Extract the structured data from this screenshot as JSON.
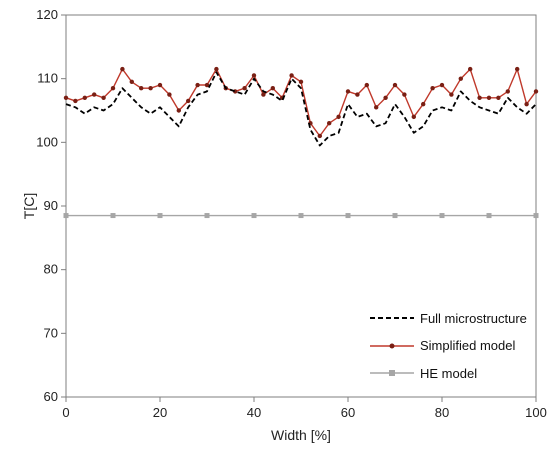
{
  "chart_data": {
    "type": "line",
    "title": "",
    "xlabel": "Width [%]",
    "ylabel": "T[C]",
    "xlim": [
      0,
      100
    ],
    "ylim": [
      60,
      120
    ],
    "xticks": [
      0,
      20,
      40,
      60,
      80,
      100
    ],
    "yticks": [
      60,
      70,
      80,
      90,
      100,
      110,
      120
    ],
    "grid": false,
    "legend_position": "bottom-right",
    "series": [
      {
        "name": "Full microstructure",
        "color": "#000000",
        "style": "dashed",
        "marker": "none",
        "x": [
          0,
          2,
          4,
          6,
          8,
          10,
          12,
          14,
          16,
          18,
          20,
          22,
          24,
          26,
          28,
          30,
          32,
          34,
          36,
          38,
          40,
          42,
          44,
          46,
          48,
          50,
          52,
          54,
          56,
          58,
          60,
          62,
          64,
          66,
          68,
          70,
          72,
          74,
          76,
          78,
          80,
          82,
          84,
          86,
          88,
          90,
          92,
          94,
          96,
          98,
          100
        ],
        "y": [
          106,
          105.5,
          104.5,
          105.5,
          105,
          106,
          108.5,
          107,
          105.5,
          104.5,
          105.5,
          104,
          102.5,
          105.5,
          107.5,
          108,
          111,
          108.5,
          108,
          107.5,
          110,
          108,
          107.5,
          106.5,
          110,
          108.5,
          102,
          99.5,
          101,
          101.5,
          106,
          104,
          104.5,
          102.5,
          103,
          106,
          104,
          101.5,
          102.5,
          105,
          105.5,
          105,
          108,
          106.5,
          105.5,
          105,
          104.5,
          107,
          105.5,
          104.5,
          106
        ]
      },
      {
        "name": "Simplified model",
        "color": "#c0392b",
        "style": "solid",
        "marker": "dot",
        "x": [
          0,
          2,
          4,
          6,
          8,
          10,
          12,
          14,
          16,
          18,
          20,
          22,
          24,
          26,
          28,
          30,
          32,
          34,
          36,
          38,
          40,
          42,
          44,
          46,
          48,
          50,
          52,
          54,
          56,
          58,
          60,
          62,
          64,
          66,
          68,
          70,
          72,
          74,
          76,
          78,
          80,
          82,
          84,
          86,
          88,
          90,
          92,
          94,
          96,
          98,
          100
        ],
        "y": [
          107,
          106.5,
          107,
          107.5,
          107,
          108.5,
          111.5,
          109.5,
          108.5,
          108.5,
          109,
          107.5,
          105,
          106.5,
          109,
          109,
          111.5,
          108.5,
          108,
          108.5,
          110.5,
          107.5,
          108.5,
          107,
          110.5,
          109.5,
          103,
          101,
          103,
          104,
          108,
          107.5,
          109,
          105.5,
          107,
          109,
          107.5,
          104,
          106,
          108.5,
          109,
          107.5,
          110,
          111.5,
          107,
          107,
          107,
          108,
          111.5,
          106,
          108
        ]
      },
      {
        "name": "HE model",
        "color": "#a6a6a6",
        "style": "solid",
        "marker": "square",
        "x": [
          0,
          10,
          20,
          30,
          40,
          50,
          60,
          70,
          80,
          90,
          100
        ],
        "y": [
          88.5,
          88.5,
          88.5,
          88.5,
          88.5,
          88.5,
          88.5,
          88.5,
          88.5,
          88.5,
          88.5
        ]
      }
    ]
  }
}
